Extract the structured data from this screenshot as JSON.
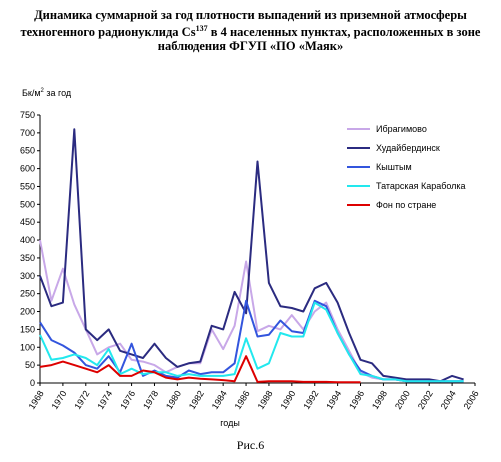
{
  "title": {
    "line1": "Динамика суммарной за год плотности выпадений из приземной атмосферы",
    "line2_pre": "техногенного радионуклида Cs",
    "line2_sup": "137",
    "line2_post": " в 4 населенных пунктах, расположенных в зоне",
    "line3": "наблюдения ФГУП «ПО «Маяк»"
  },
  "caption": "Рис.6",
  "chart_data": {
    "type": "line",
    "ylabel_pre": "Бк/м",
    "ylabel_sup": "2",
    "ylabel_post": " за год",
    "xlabel": "годы",
    "ylim": [
      0,
      750
    ],
    "yticks": [
      0,
      50,
      100,
      150,
      200,
      250,
      300,
      350,
      400,
      450,
      500,
      550,
      600,
      650,
      700,
      750
    ],
    "xlim": [
      1968,
      2006
    ],
    "xticks": [
      1968,
      1970,
      1972,
      1974,
      1976,
      1978,
      1980,
      1982,
      1984,
      1986,
      1988,
      1990,
      1992,
      1994,
      1996,
      1998,
      2000,
      2002,
      2004,
      2006
    ],
    "grid": false,
    "legend_position": "right",
    "series": [
      {
        "name": "Ибрагимово",
        "color": "#c8a8e8",
        "x": [
          1968,
          1969,
          1970,
          1971,
          1972,
          1973,
          1974,
          1975,
          1976,
          1977,
          1978,
          1979,
          1980,
          1981,
          1982,
          1983,
          1984,
          1985,
          1986,
          1987,
          1988,
          1989,
          1990,
          1991,
          1992,
          1993,
          1994,
          1995,
          1996,
          1997,
          1998,
          1999,
          2000,
          2001,
          2002,
          2003,
          2004,
          2005
        ],
        "y": [
          400,
          230,
          320,
          220,
          150,
          80,
          100,
          110,
          65,
          60,
          50,
          30,
          45,
          55,
          55,
          150,
          95,
          160,
          340,
          145,
          160,
          150,
          190,
          150,
          200,
          225,
          150,
          90,
          30,
          15,
          10,
          10,
          5,
          5,
          5,
          5,
          5,
          5
        ]
      },
      {
        "name": "Худайбердинск",
        "color": "#2b2b80",
        "x": [
          1968,
          1969,
          1970,
          1971,
          1972,
          1973,
          1974,
          1975,
          1976,
          1977,
          1978,
          1979,
          1980,
          1981,
          1982,
          1983,
          1984,
          1985,
          1986,
          1987,
          1988,
          1989,
          1990,
          1991,
          1992,
          1993,
          1994,
          1995,
          1996,
          1997,
          1998,
          1999,
          2000,
          2001,
          2002,
          2003,
          2004,
          2005
        ],
        "y": [
          300,
          215,
          225,
          710,
          150,
          120,
          150,
          90,
          80,
          70,
          110,
          70,
          45,
          55,
          60,
          160,
          150,
          255,
          195,
          620,
          280,
          215,
          210,
          200,
          265,
          280,
          225,
          140,
          65,
          55,
          20,
          15,
          10,
          10,
          10,
          5,
          20,
          10
        ]
      },
      {
        "name": "Кыштым",
        "color": "#3355dd",
        "x": [
          1968,
          1969,
          1970,
          1971,
          1972,
          1973,
          1974,
          1975,
          1976,
          1977,
          1978,
          1979,
          1980,
          1981,
          1982,
          1983,
          1984,
          1985,
          1986,
          1987,
          1988,
          1989,
          1990,
          1991,
          1992,
          1993,
          1994,
          1995,
          1996,
          1997,
          1998,
          1999,
          2000,
          2001,
          2002,
          2003,
          2004,
          2005
        ],
        "y": [
          170,
          120,
          105,
          85,
          50,
          40,
          75,
          30,
          110,
          20,
          35,
          20,
          15,
          35,
          25,
          30,
          30,
          55,
          230,
          130,
          135,
          175,
          145,
          140,
          230,
          215,
          140,
          80,
          35,
          20,
          10,
          10,
          5,
          5,
          5,
          5,
          5,
          5
        ]
      },
      {
        "name": "Татарская Караболка",
        "color": "#22e8ee",
        "x": [
          1968,
          1969,
          1970,
          1971,
          1972,
          1973,
          1974,
          1975,
          1976,
          1977,
          1978,
          1979,
          1980,
          1981,
          1982,
          1983,
          1984,
          1985,
          1986,
          1987,
          1988,
          1989,
          1990,
          1991,
          1992,
          1993,
          1994,
          1995,
          1996,
          1997,
          1998,
          1999,
          2000,
          2001,
          2002,
          2003,
          2004,
          2005
        ],
        "y": [
          135,
          65,
          70,
          80,
          70,
          50,
          95,
          25,
          40,
          25,
          30,
          30,
          20,
          25,
          20,
          20,
          20,
          25,
          125,
          40,
          55,
          140,
          130,
          130,
          225,
          205,
          140,
          80,
          25,
          20,
          10,
          10,
          5,
          5,
          5,
          5,
          5,
          5
        ]
      },
      {
        "name": "Фон по стране",
        "color": "#dd0000",
        "x": [
          1968,
          1969,
          1970,
          1971,
          1972,
          1973,
          1974,
          1975,
          1976,
          1977,
          1978,
          1979,
          1980,
          1981,
          1982,
          1983,
          1984,
          1985,
          1986,
          1987,
          1988,
          1989,
          1990,
          1991,
          1992,
          1993,
          1994,
          1995,
          1996
        ],
        "y": [
          45,
          50,
          60,
          50,
          40,
          30,
          50,
          20,
          20,
          35,
          30,
          15,
          10,
          15,
          12,
          10,
          8,
          5,
          75,
          3,
          5,
          5,
          5,
          3,
          3,
          3,
          2,
          2,
          2
        ]
      }
    ]
  }
}
